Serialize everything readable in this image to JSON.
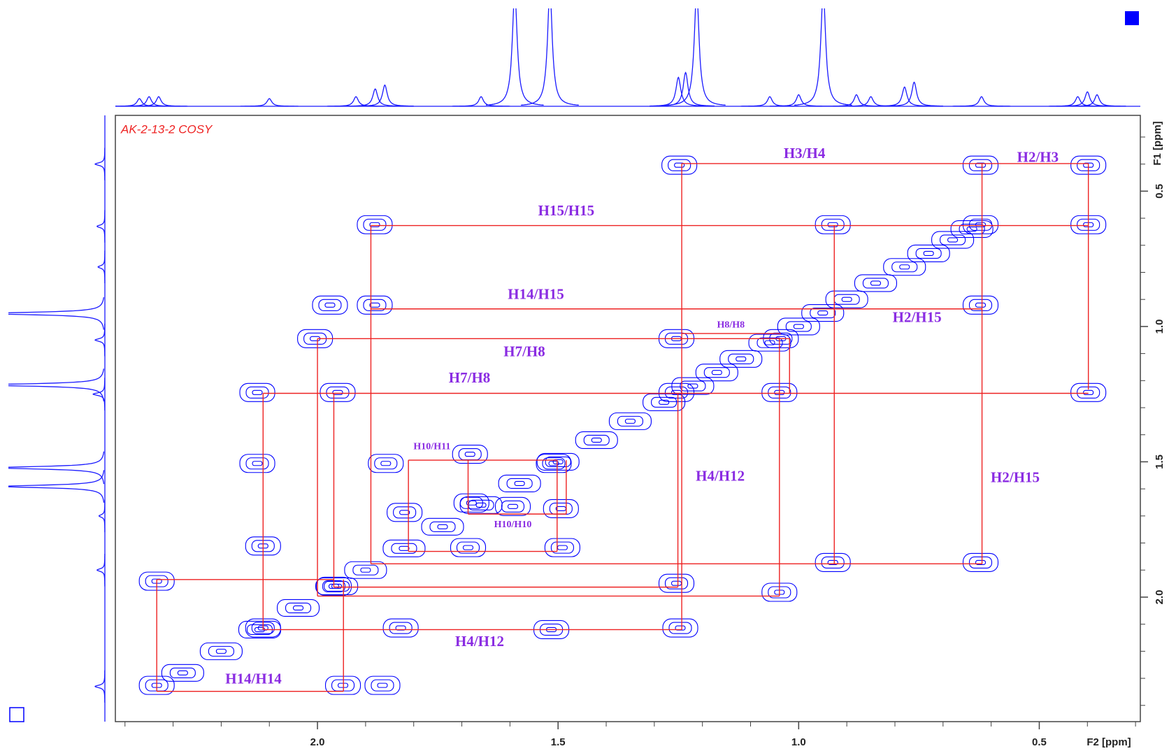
{
  "chart_data": {
    "type": "contour",
    "title": "AK-2-13-2 COSY",
    "xlabel": "F2 [ppm]",
    "ylabel": "F1 [ppm]",
    "xlim": [
      2.42,
      0.29
    ],
    "ylim": [
      0.22,
      2.46
    ],
    "xticks": [
      {
        "value": 2,
        "label": "2.0"
      },
      1.5,
      {
        "value": 1,
        "label": "1.0"
      },
      0.5
    ],
    "yticks": [
      0.5,
      {
        "value": 1,
        "label": "1.0"
      },
      1.5,
      {
        "value": 2,
        "label": "2.0"
      }
    ],
    "xminorticks": [
      2.4,
      2.3,
      2.2,
      2.1,
      1.9,
      1.8,
      1.7,
      1.6,
      1.4,
      1.3,
      1.2,
      1.1,
      0.9,
      0.8,
      0.7,
      0.6,
      0.4,
      0.3
    ],
    "yminorticks": [
      0.3,
      0.4,
      0.6,
      0.7,
      0.8,
      0.9,
      1.1,
      1.2,
      1.3,
      1.4,
      1.6,
      1.7,
      1.8,
      1.9,
      2.1,
      2.2,
      2.3,
      2.4
    ],
    "contour_color": "#0000ff",
    "line_color": "#ee2222",
    "label_color": "#8a2be2",
    "title_color": "#ee2222",
    "projection_color": "#1a1aff",
    "cross_peaks": {
      "x": [
        1.248,
        0.622,
        0.398,
        1.881,
        0.929,
        0.622,
        0.398,
        1.974,
        1.881,
        0.622,
        2.005,
        1.254,
        1.037,
        2.125,
        1.958,
        1.254,
        1.04,
        0.398,
        2.125,
        1.858,
        1.683,
        1.509,
        1.819,
        1.68,
        1.594,
        1.494,
        1.687,
        1.491,
        2.113,
        0.929,
        0.622,
        2.334,
        1.966,
        1.254,
        1.04,
        2.113,
        1.827,
        1.514,
        1.246,
        2.334,
        1.947,
        1.865
      ],
      "y": [
        0.404,
        0.404,
        0.404,
        0.624,
        0.624,
        0.624,
        0.624,
        0.921,
        0.921,
        0.921,
        1.045,
        1.045,
        1.045,
        1.244,
        1.244,
        1.244,
        1.244,
        1.244,
        1.506,
        1.506,
        1.472,
        1.506,
        1.687,
        1.652,
        1.665,
        1.673,
        1.817,
        1.817,
        1.811,
        1.872,
        1.872,
        1.941,
        1.96,
        1.949,
        1.982,
        2.114,
        2.114,
        2.12,
        2.114,
        2.326,
        2.326,
        2.326
      ]
    },
    "diagonal_peaks": {
      "x": [
        2.28,
        2.2,
        2.12,
        2.04,
        1.96,
        1.9,
        1.82,
        1.74,
        1.66,
        1.58,
        1.5,
        1.42,
        1.35,
        1.28,
        1.22,
        1.17,
        1.12,
        1.06,
        1.0,
        0.95,
        0.9,
        0.84,
        0.78,
        0.73,
        0.68,
        0.64
      ],
      "y": [
        2.28,
        2.2,
        2.12,
        2.04,
        1.96,
        1.9,
        1.82,
        1.74,
        1.66,
        1.58,
        1.5,
        1.42,
        1.35,
        1.28,
        1.22,
        1.17,
        1.12,
        1.06,
        1.0,
        0.95,
        0.9,
        0.84,
        0.78,
        0.73,
        0.68,
        0.64
      ]
    },
    "correlation_lines": [
      [
        1.243,
        0.398,
        0.398,
        0.398
      ],
      [
        1.243,
        0.398,
        1.243,
        2.12
      ],
      [
        0.398,
        0.398,
        0.398,
        1.233
      ],
      [
        1.889,
        0.627,
        0.398,
        0.627
      ],
      [
        1.889,
        0.627,
        1.889,
        1.877
      ],
      [
        1.889,
        1.877,
        0.619,
        1.877
      ],
      [
        0.619,
        0.398,
        0.619,
        1.877
      ],
      [
        0.926,
        0.627,
        0.926,
        1.877
      ],
      [
        1.889,
        0.935,
        0.619,
        0.935
      ],
      [
        2.0,
        1.045,
        1.019,
        1.045
      ],
      [
        2.0,
        1.045,
        2.0,
        1.996
      ],
      [
        2.0,
        1.996,
        1.04,
        1.996
      ],
      [
        1.04,
        1.045,
        1.04,
        1.996
      ],
      [
        1.019,
        1.045,
        1.019,
        1.247
      ],
      [
        2.113,
        1.247,
        0.398,
        1.247
      ],
      [
        2.113,
        1.247,
        2.113,
        2.12
      ],
      [
        2.113,
        2.12,
        1.243,
        2.12
      ],
      [
        1.966,
        1.247,
        1.966,
        1.963
      ],
      [
        1.966,
        1.963,
        1.251,
        1.963
      ],
      [
        1.251,
        1.247,
        1.251,
        1.963
      ],
      [
        2.334,
        1.935,
        1.966,
        1.935
      ],
      [
        2.334,
        1.935,
        2.334,
        2.348
      ],
      [
        2.334,
        2.348,
        1.946,
        2.348
      ],
      [
        1.946,
        1.935,
        1.946,
        2.348
      ],
      [
        1.811,
        1.494,
        1.502,
        1.494
      ],
      [
        1.811,
        1.494,
        1.811,
        1.831
      ],
      [
        1.811,
        1.831,
        1.502,
        1.831
      ],
      [
        1.502,
        1.494,
        1.502,
        1.831
      ],
      [
        1.687,
        1.494,
        1.687,
        1.693
      ],
      [
        1.687,
        1.693,
        1.483,
        1.693
      ],
      [
        1.483,
        1.494,
        1.483,
        1.693
      ],
      [
        1.243,
        1.026,
        1.037,
        1.026
      ]
    ],
    "annotations": [
      {
        "text": "H3/H4",
        "x": 0.988,
        "y": 0.365
      },
      {
        "text": "H2/H3",
        "x": 0.503,
        "y": 0.379
      },
      {
        "text": "H15/H15",
        "x": 1.483,
        "y": 0.577
      },
      {
        "text": "H14/H15",
        "x": 1.546,
        "y": 0.886
      },
      {
        "text": "H2/H15",
        "x": 0.754,
        "y": 0.971
      },
      {
        "text": "H8/H8",
        "x": 1.141,
        "y": 0.996,
        "small": true
      },
      {
        "text": "H7/H8",
        "x": 1.57,
        "y": 1.098
      },
      {
        "text": "H7/H8",
        "x": 1.684,
        "y": 1.194
      },
      {
        "text": "H10/H11",
        "x": 1.762,
        "y": 1.445,
        "small": true
      },
      {
        "text": "H4/H12",
        "x": 1.163,
        "y": 1.558
      },
      {
        "text": "H2/H15",
        "x": 0.55,
        "y": 1.563
      },
      {
        "text": "H10/H10",
        "x": 1.594,
        "y": 1.734,
        "small": true
      },
      {
        "text": "H4/H12",
        "x": 1.663,
        "y": 2.169
      },
      {
        "text": "H14/H14",
        "x": 2.133,
        "y": 2.307
      }
    ],
    "f2_projection": [
      {
        "ppm": 1.59,
        "height": 1.2
      },
      {
        "ppm": 1.517,
        "height": 1.2
      },
      {
        "ppm": 1.212,
        "height": 1.2
      },
      {
        "ppm": 0.949,
        "height": 1.2
      },
      {
        "ppm": 1.25,
        "height": 0.3
      },
      {
        "ppm": 1.235,
        "height": 0.35
      },
      {
        "ppm": 1.86,
        "height": 0.22
      },
      {
        "ppm": 1.88,
        "height": 0.18
      },
      {
        "ppm": 0.76,
        "height": 0.25
      },
      {
        "ppm": 0.78,
        "height": 0.2
      },
      {
        "ppm": 0.4,
        "height": 0.15
      },
      {
        "ppm": 0.38,
        "height": 0.12
      },
      {
        "ppm": 0.42,
        "height": 0.1
      },
      {
        "ppm": 2.33,
        "height": 0.1
      },
      {
        "ppm": 2.35,
        "height": 0.1
      },
      {
        "ppm": 2.37,
        "height": 0.08
      },
      {
        "ppm": 0.62,
        "height": 0.1
      },
      {
        "ppm": 1.66,
        "height": 0.1
      },
      {
        "ppm": 2.1,
        "height": 0.08
      },
      {
        "ppm": 1.92,
        "height": 0.1
      },
      {
        "ppm": 1.0,
        "height": 0.12
      },
      {
        "ppm": 1.06,
        "height": 0.1
      },
      {
        "ppm": 0.88,
        "height": 0.12
      },
      {
        "ppm": 0.85,
        "height": 0.1
      }
    ],
    "f1_projection": [
      {
        "ppm": 0.952,
        "height": 1.2
      },
      {
        "ppm": 1.216,
        "height": 1.2
      },
      {
        "ppm": 1.522,
        "height": 1.1
      },
      {
        "ppm": 1.591,
        "height": 1.05
      },
      {
        "ppm": 0.4,
        "height": 0.1
      },
      {
        "ppm": 0.63,
        "height": 0.08
      },
      {
        "ppm": 1.25,
        "height": 0.12
      },
      {
        "ppm": 1.9,
        "height": 0.08
      },
      {
        "ppm": 2.33,
        "height": 0.1
      },
      {
        "ppm": 1.05,
        "height": 0.1
      },
      {
        "ppm": 0.78,
        "height": 0.07
      },
      {
        "ppm": 1.7,
        "height": 0.06
      }
    ]
  }
}
